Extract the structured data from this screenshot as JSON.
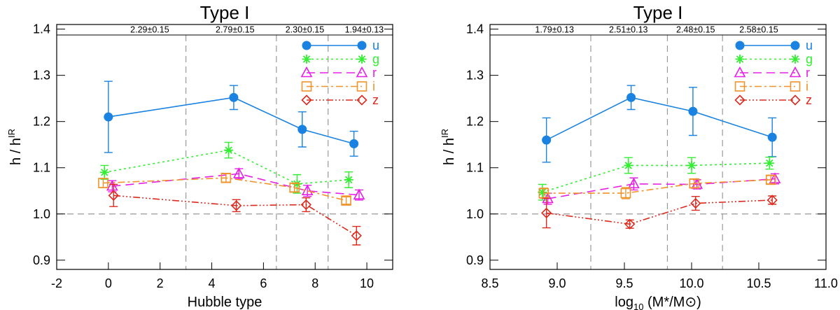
{
  "chart_data": [
    {
      "type": "line",
      "title": "Type I",
      "xlabel": "Hubble type",
      "ylabel": "h / h",
      "ylabel_superscript": "IR",
      "xlim": [
        -2,
        11
      ],
      "ylim": [
        0.88,
        1.41
      ],
      "xticks": [
        -2,
        0,
        2,
        4,
        6,
        8,
        10
      ],
      "xtick_labels": [
        "-2",
        "0",
        "2",
        "4",
        "6",
        "8",
        "10"
      ],
      "yticks": [
        0.9,
        1.0,
        1.1,
        1.2,
        1.3,
        1.4
      ],
      "ytick_labels": [
        "0.9",
        "1.0",
        "1.1",
        "1.2",
        "1.3",
        "1.4"
      ],
      "reference_line": 1.0,
      "bin_edges": [
        3.0,
        6.5,
        8.5
      ],
      "bin_labels": [
        {
          "x": 1.6,
          "text": "2.29±0.15"
        },
        {
          "x": 4.9,
          "text": "2.79±0.15"
        },
        {
          "x": 7.6,
          "text": "2.30±0.15"
        },
        {
          "x": 9.9,
          "text": "1.94±0.13"
        }
      ],
      "series": [
        {
          "name": "u",
          "color": "#1a82e0",
          "marker": "circle",
          "dash": "",
          "x": [
            0.0,
            4.85,
            7.5,
            9.5
          ],
          "y": [
            1.21,
            1.252,
            1.183,
            1.152
          ],
          "yerr": [
            0.077,
            0.026,
            0.038,
            0.027
          ]
        },
        {
          "name": "g",
          "color": "#33ee33",
          "marker": "asterisk",
          "dash": "3,4",
          "x": [
            -0.15,
            4.65,
            7.3,
            9.3
          ],
          "y": [
            1.09,
            1.138,
            1.065,
            1.074
          ],
          "yerr": [
            0.015,
            0.017,
            0.02,
            0.017
          ]
        },
        {
          "name": "r",
          "color": "#e520e5",
          "marker": "triangle",
          "dash": "12,7",
          "x": [
            0.15,
            5.05,
            7.7,
            9.7
          ],
          "y": [
            1.06,
            1.087,
            1.05,
            1.041
          ],
          "yerr": [
            0.012,
            0.011,
            0.012,
            0.011
          ]
        },
        {
          "name": "i",
          "color": "#f0932b",
          "marker": "square",
          "dash": "10,4,3,4",
          "x": [
            -0.2,
            4.55,
            7.2,
            9.2
          ],
          "y": [
            1.067,
            1.078,
            1.057,
            1.029
          ],
          "yerr": [
            0.01,
            0.009,
            0.009,
            0.008
          ]
        },
        {
          "name": "z",
          "color": "#dc2a1f",
          "marker": "diamond",
          "dash": "10,3,2,3,2,3,2,3",
          "x": [
            0.2,
            4.95,
            7.65,
            9.6
          ],
          "y": [
            1.04,
            1.018,
            1.02,
            0.953
          ],
          "yerr": [
            0.024,
            0.013,
            0.015,
            0.02
          ]
        }
      ]
    },
    {
      "type": "line",
      "title": "Type I",
      "xlabel": "log",
      "xlabel_subscript": "10",
      "xlabel_suffix": " (M*/M⊙)",
      "ylabel": "h / h",
      "ylabel_superscript": "IR",
      "xlim": [
        8.5,
        11.0
      ],
      "ylim": [
        0.88,
        1.41
      ],
      "xticks": [
        8.5,
        9.0,
        9.5,
        10.0,
        10.5,
        11.0
      ],
      "xtick_labels": [
        "8.5",
        "9.0",
        "9.5",
        "10.0",
        "10.5",
        "11.0"
      ],
      "yticks": [
        0.9,
        1.0,
        1.1,
        1.2,
        1.3,
        1.4
      ],
      "ytick_labels": [
        "0.9",
        "1.0",
        "1.1",
        "1.2",
        "1.3",
        "1.4"
      ],
      "reference_line": 1.0,
      "bin_edges": [
        9.25,
        9.82,
        10.23
      ],
      "bin_labels": [
        {
          "x": 8.98,
          "text": "1.79±0.13"
        },
        {
          "x": 9.53,
          "text": "2.51±0.13"
        },
        {
          "x": 10.03,
          "text": "2.48±0.15"
        },
        {
          "x": 10.5,
          "text": "2.58±0.15"
        }
      ],
      "series": [
        {
          "name": "u",
          "color": "#1a82e0",
          "marker": "circle",
          "dash": "",
          "x": [
            8.92,
            9.55,
            10.01,
            10.6
          ],
          "y": [
            1.16,
            1.252,
            1.222,
            1.166
          ],
          "yerr": [
            0.048,
            0.026,
            0.052,
            0.042
          ]
        },
        {
          "name": "g",
          "color": "#33ee33",
          "marker": "asterisk",
          "dash": "3,4",
          "x": [
            8.89,
            9.53,
            10.0,
            10.58
          ],
          "y": [
            1.047,
            1.105,
            1.105,
            1.11
          ],
          "yerr": [
            0.017,
            0.017,
            0.017,
            0.013
          ]
        },
        {
          "name": "r",
          "color": "#e520e5",
          "marker": "triangle",
          "dash": "12,7",
          "x": [
            8.93,
            9.57,
            10.04,
            10.62
          ],
          "y": [
            1.033,
            1.065,
            1.064,
            1.076
          ],
          "yerr": [
            0.012,
            0.013,
            0.01,
            0.011
          ]
        },
        {
          "name": "i",
          "color": "#f0932b",
          "marker": "square",
          "dash": "10,4,3,4",
          "x": [
            8.9,
            9.51,
            10.02,
            10.59
          ],
          "y": [
            1.045,
            1.045,
            1.066,
            1.074
          ],
          "yerr": [
            0.011,
            0.012,
            0.009,
            0.009
          ]
        },
        {
          "name": "z",
          "color": "#dc2a1f",
          "marker": "diamond",
          "dash": "10,3,2,3,2,3,2,3",
          "x": [
            8.92,
            9.54,
            10.03,
            10.6
          ],
          "y": [
            1.002,
            0.978,
            1.023,
            1.03
          ],
          "yerr": [
            0.032,
            0.009,
            0.015,
            0.009
          ]
        }
      ]
    }
  ]
}
